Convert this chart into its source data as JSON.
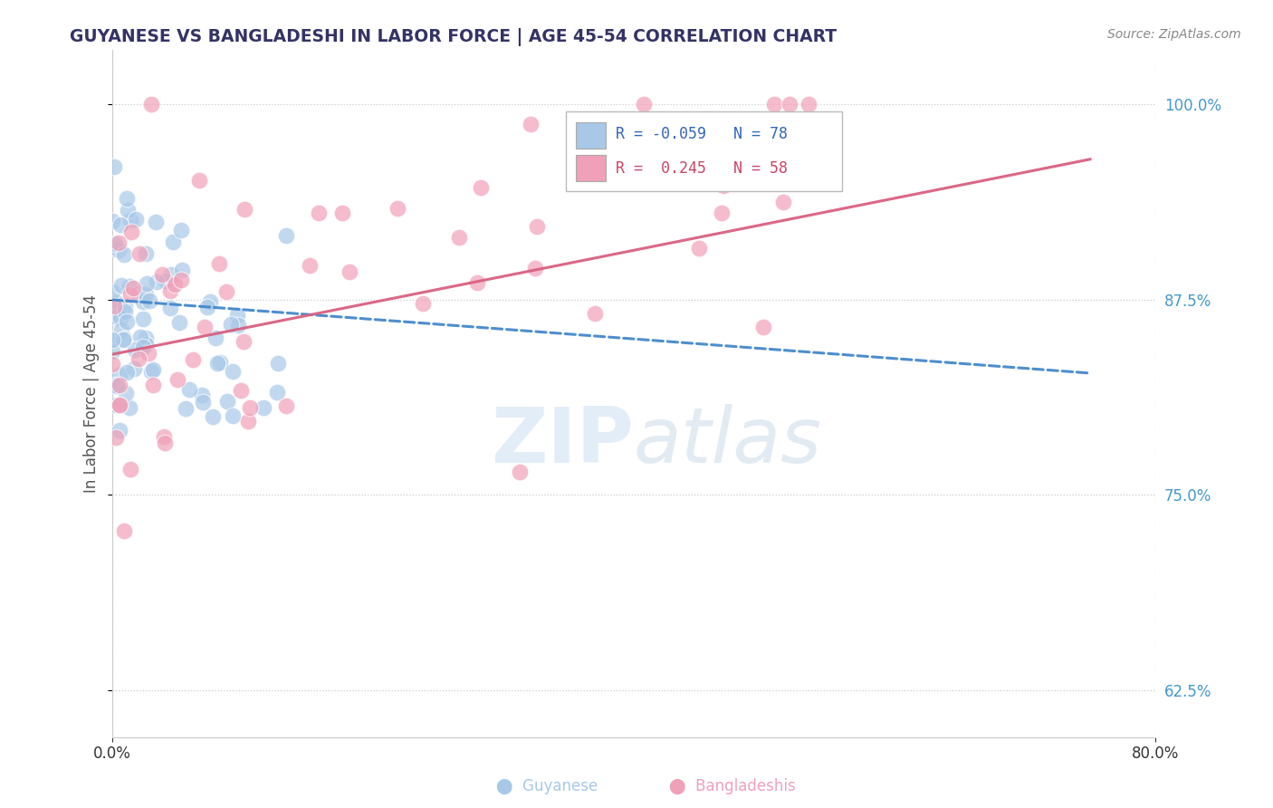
{
  "title": "GUYANESE VS BANGLADESHI IN LABOR FORCE | AGE 45-54 CORRELATION CHART",
  "source": "Source: ZipAtlas.com",
  "ylabel": "In Labor Force | Age 45-54",
  "xlim": [
    0.0,
    0.8
  ],
  "ylim": [
    0.595,
    1.035
  ],
  "ytick_values": [
    0.625,
    0.75,
    0.875,
    1.0
  ],
  "blue_R": -0.059,
  "blue_N": 78,
  "pink_R": 0.245,
  "pink_N": 58,
  "blue_color": "#a8c8e8",
  "pink_color": "#f0a0b8",
  "blue_line_color": "#4488cc",
  "pink_line_color": "#d86080",
  "watermark_zip": "ZIP",
  "watermark_atlas": "atlas",
  "legend_label_blue": "Guyanese",
  "legend_label_pink": "Bangladeshis",
  "right_tick_color": "#4499cc",
  "title_color": "#333366",
  "source_color": "#888888"
}
